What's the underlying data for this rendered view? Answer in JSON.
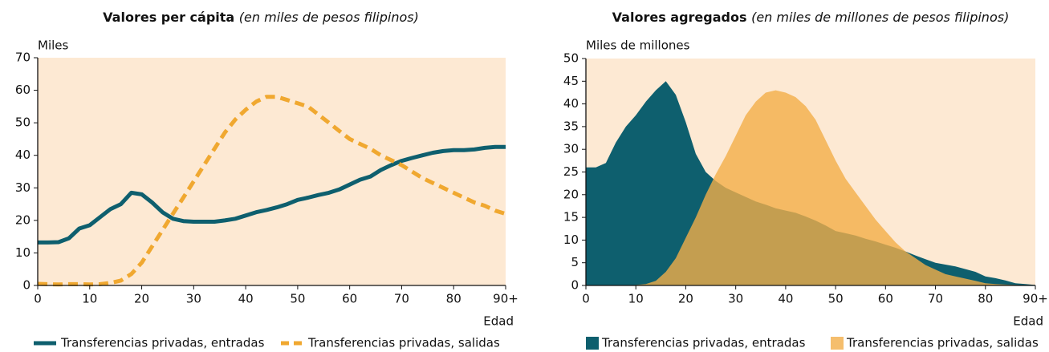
{
  "chart_data": [
    {
      "type": "line",
      "title": "Valores per cápita",
      "subtitle": "(en miles de pesos filipinos)",
      "y_label": "Miles",
      "x_label": "Edad",
      "x": [
        0,
        2,
        4,
        6,
        8,
        10,
        12,
        14,
        16,
        18,
        20,
        22,
        24,
        26,
        28,
        30,
        32,
        34,
        36,
        38,
        40,
        42,
        44,
        46,
        48,
        50,
        52,
        54,
        56,
        58,
        60,
        62,
        64,
        66,
        68,
        70,
        72,
        74,
        76,
        78,
        80,
        82,
        84,
        86,
        88,
        90
      ],
      "xlim": [
        0,
        90
      ],
      "xticks": [
        0,
        10,
        20,
        30,
        40,
        50,
        60,
        70,
        80,
        {
          "value": 90,
          "label": "90+"
        }
      ],
      "ylim": [
        0,
        70
      ],
      "yticks": [
        0,
        10,
        20,
        30,
        40,
        50,
        60,
        70
      ],
      "series": [
        {
          "name": "Transferencias privadas, entradas",
          "color": "#0e5f6e",
          "dashed": false,
          "values": [
            13.2,
            13.2,
            13.3,
            14.5,
            17.5,
            18.5,
            21,
            23.5,
            25,
            28.5,
            28,
            25.5,
            22.5,
            20.5,
            19.8,
            19.6,
            19.6,
            19.6,
            20,
            20.5,
            21.5,
            22.5,
            23.2,
            24,
            25,
            26.3,
            27,
            27.8,
            28.5,
            29.5,
            31,
            32.5,
            33.5,
            35.5,
            37,
            38.3,
            39.2,
            40,
            40.8,
            41.3,
            41.6,
            41.6,
            41.8,
            42.3,
            42.6,
            42.6
          ]
        },
        {
          "name": "Transferencias privadas, salidas",
          "color": "#f0a830",
          "dashed": true,
          "values": [
            0.5,
            0.4,
            0.3,
            0.4,
            0.4,
            0.3,
            0.4,
            0.8,
            1.5,
            3.5,
            7,
            12,
            17,
            22,
            27,
            32,
            37,
            42,
            47,
            51,
            54,
            56.5,
            58,
            58,
            57,
            56,
            55,
            52.5,
            50,
            47.5,
            45,
            43.5,
            42,
            40,
            38.5,
            37,
            35,
            33,
            31.5,
            30,
            28.5,
            27,
            25.5,
            24.5,
            23,
            22
          ]
        }
      ]
    },
    {
      "type": "area",
      "title": "Valores agregados",
      "subtitle": "(en miles de millones de pesos filipinos)",
      "y_label": "Miles de millones",
      "x_label": "Edad",
      "x": [
        0,
        2,
        4,
        6,
        8,
        10,
        12,
        14,
        16,
        18,
        20,
        22,
        24,
        26,
        28,
        30,
        32,
        34,
        36,
        38,
        40,
        42,
        44,
        46,
        48,
        50,
        52,
        54,
        56,
        58,
        60,
        62,
        64,
        66,
        68,
        70,
        72,
        74,
        76,
        78,
        80,
        82,
        84,
        86,
        88,
        90
      ],
      "xlim": [
        0,
        90
      ],
      "xticks": [
        0,
        10,
        20,
        30,
        40,
        50,
        60,
        70,
        80,
        {
          "value": 90,
          "label": "90+"
        }
      ],
      "ylim": [
        0,
        50
      ],
      "yticks": [
        0,
        5,
        10,
        15,
        20,
        25,
        30,
        35,
        40,
        45,
        50
      ],
      "series": [
        {
          "name": "Transferencias privadas, entradas",
          "color": "#0e5f6e",
          "values": [
            26,
            26,
            27,
            31.5,
            35,
            37.5,
            40.5,
            43,
            45,
            42,
            36,
            29,
            25,
            23,
            21.5,
            20.5,
            19.5,
            18.5,
            17.8,
            17,
            16.5,
            16,
            15.2,
            14.3,
            13.2,
            12,
            11.5,
            11,
            10.3,
            9.7,
            9,
            8.3,
            7.5,
            6.6,
            5.8,
            5,
            4.6,
            4.2,
            3.6,
            3,
            2,
            1.6,
            1.1,
            0.5,
            0.3,
            0.1
          ]
        },
        {
          "name": "Transferencias privadas, salidas",
          "color": "#f2ae48",
          "values": [
            0,
            0,
            0,
            0,
            0,
            0.1,
            0.3,
            1,
            3,
            6,
            10.5,
            15,
            20,
            24.5,
            28.5,
            33,
            37.5,
            40.5,
            42.5,
            43,
            42.5,
            41.5,
            39.5,
            36.5,
            32,
            27.5,
            23.5,
            20.5,
            17.5,
            14.5,
            12,
            9.5,
            7.5,
            6,
            4.5,
            3.5,
            2.5,
            2,
            1.5,
            1,
            0.5,
            0.3,
            0.2,
            0.1,
            0.05,
            0
          ]
        }
      ]
    }
  ]
}
